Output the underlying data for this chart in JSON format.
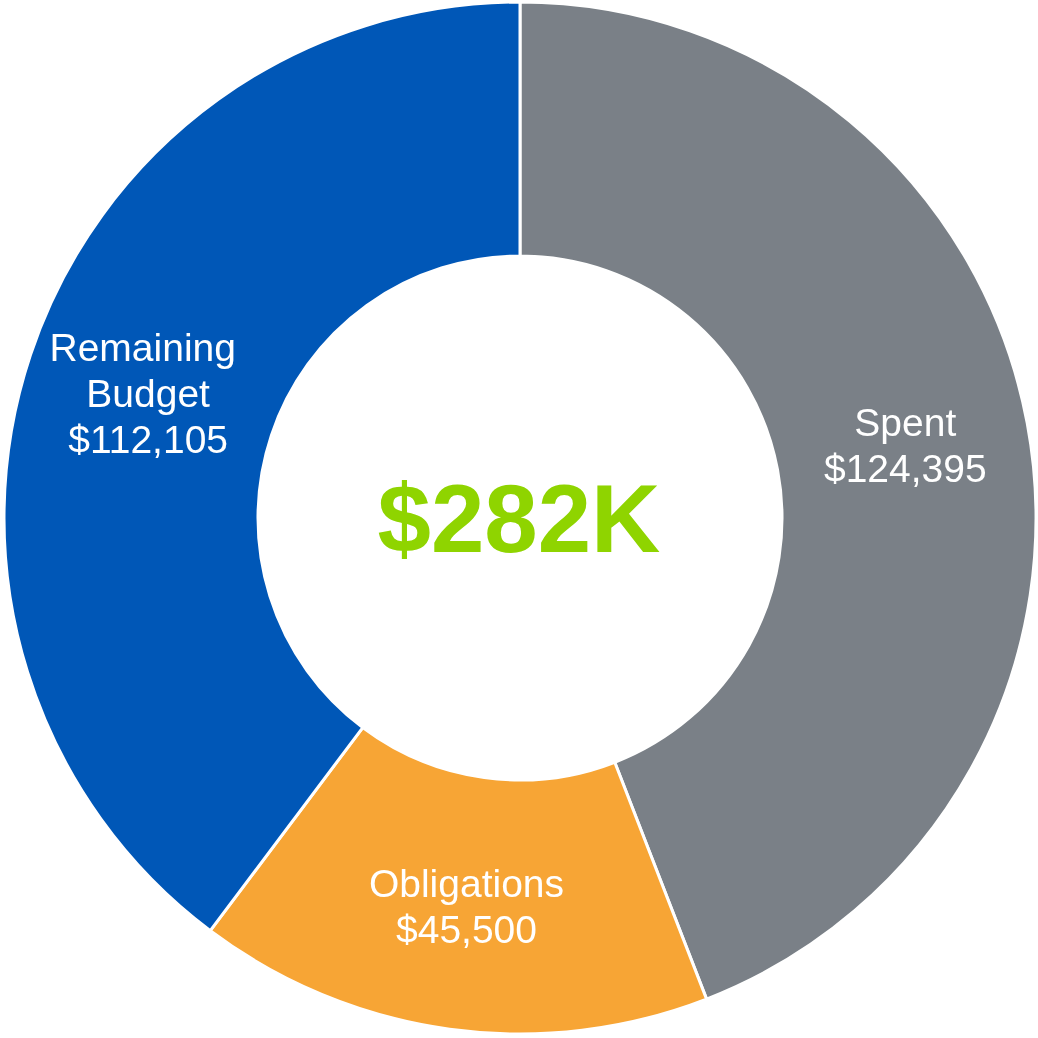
{
  "chart_data": {
    "type": "donut",
    "categories": [
      "Spent",
      "Obligations",
      "Remaining Budget"
    ],
    "values": [
      124395,
      45500,
      112105
    ],
    "colors": [
      "#7a8087",
      "#f7a535",
      "#0057b7"
    ],
    "value_labels": [
      "$124,395",
      "$45,500",
      "$112,105"
    ],
    "annotations": [
      "$282K"
    ]
  }
}
